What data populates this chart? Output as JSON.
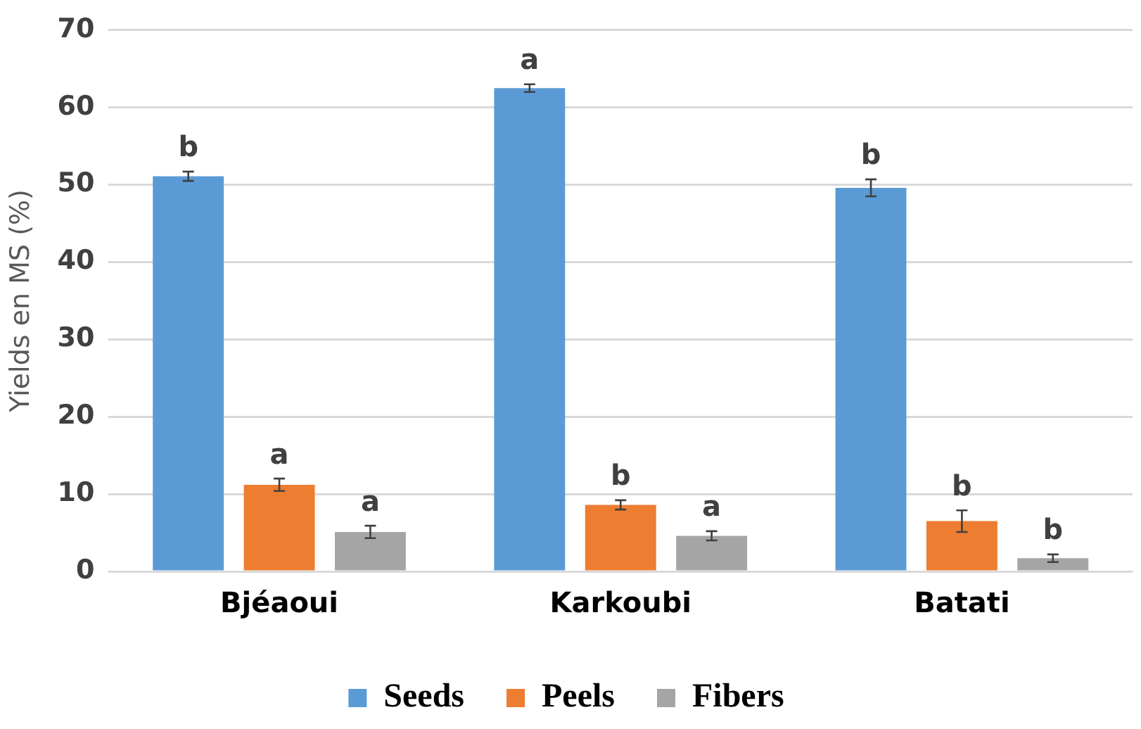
{
  "chart_data": {
    "type": "bar",
    "ylabel": "Yields en MS (%)",
    "categories": [
      "Bjéaoui",
      "Karkoubi",
      "Batati"
    ],
    "series": [
      {
        "name": "Seeds",
        "color": "#5b9bd5",
        "values": [
          51.1,
          62.5,
          49.6
        ],
        "errors": [
          0.6,
          0.5,
          1.1
        ],
        "value_labels": [
          "b",
          "a",
          "b"
        ]
      },
      {
        "name": "Peels",
        "color": "#ed7d31",
        "values": [
          11.2,
          8.6,
          6.5
        ],
        "errors": [
          0.8,
          0.6,
          1.4
        ],
        "value_labels": [
          "a",
          "b",
          "b"
        ]
      },
      {
        "name": "Fibers",
        "color": "#a5a5a5",
        "values": [
          5.1,
          4.6,
          1.7
        ],
        "errors": [
          0.8,
          0.6,
          0.5
        ],
        "value_labels": [
          "a",
          "a",
          "b"
        ]
      }
    ],
    "ylim": [
      0,
      70
    ],
    "yticks": [
      0,
      10,
      20,
      30,
      40,
      50,
      60,
      70
    ],
    "grid": "y",
    "legend": "bottom"
  }
}
